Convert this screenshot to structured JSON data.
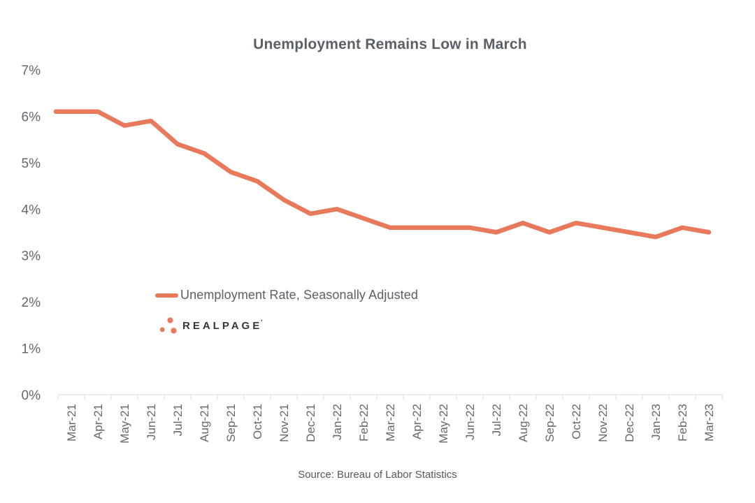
{
  "title": "Unemployment Remains Low in March",
  "legend": {
    "label": "Unemployment Rate, Seasonally Adjusted"
  },
  "logo": {
    "wordmark": "REALPAGE",
    "trademark_mark": "'"
  },
  "source": "Source: Bureau of Labor Statistics",
  "colors": {
    "line": "#E8795A",
    "axis": "#D8DBDD",
    "tick_label": "#62686E",
    "title": "#5A6067",
    "legend_text": "#5A6067",
    "logo_text": "#32363C",
    "logo_dots": "#E8795A"
  },
  "chart_data": {
    "type": "line",
    "title": "Unemployment Remains Low in March",
    "xlabel": "",
    "ylabel": "",
    "ylim": [
      0,
      7
    ],
    "grid": false,
    "legend_position": "inside-left, below line at ~2% level",
    "ytick_values": [
      0,
      1,
      2,
      3,
      4,
      5,
      6,
      7
    ],
    "ytick_labels": [
      "0%",
      "1%",
      "2%",
      "3%",
      "4%",
      "5%",
      "6%",
      "7%"
    ],
    "categories": [
      "Mar-21",
      "Apr-21",
      "May-21",
      "Jun-21",
      "Jul-21",
      "Aug-21",
      "Sep-21",
      "Oct-21",
      "Nov-21",
      "Dec-21",
      "Jan-22",
      "Feb-22",
      "Mar-22",
      "Apr-22",
      "May-22",
      "Jun-22",
      "Jul-22",
      "Aug-22",
      "Sep-22",
      "Oct-22",
      "Nov-22",
      "Dec-22",
      "Jan-23",
      "Feb-23",
      "Mar-23"
    ],
    "series": [
      {
        "name": "Unemployment Rate, Seasonally Adjusted",
        "values": [
          6.1,
          6.1,
          5.8,
          5.9,
          5.4,
          5.2,
          4.8,
          4.6,
          4.2,
          3.9,
          4.0,
          3.8,
          3.6,
          3.6,
          3.6,
          3.6,
          3.5,
          3.7,
          3.5,
          3.7,
          3.6,
          3.5,
          3.4,
          3.6,
          3.5
        ]
      }
    ]
  }
}
